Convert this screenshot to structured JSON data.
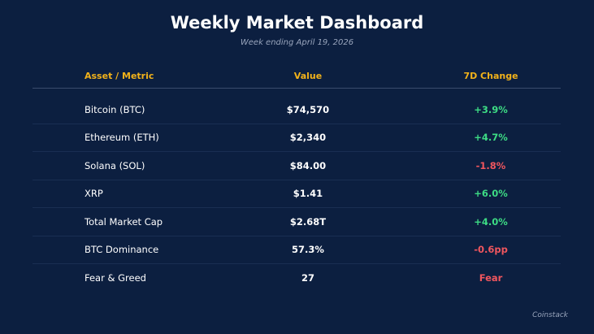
{
  "title": "Weekly Market Dashboard",
  "subtitle": "Week ending April 19, 2026",
  "columns": {
    "metric": "Asset / Metric",
    "value": "Value",
    "change": "7D Change"
  },
  "rows": [
    {
      "metric": "Bitcoin (BTC)",
      "value": "$74,570",
      "change": "+3.9%",
      "trend": "positive"
    },
    {
      "metric": "Ethereum (ETH)",
      "value": "$2,340",
      "change": "+4.7%",
      "trend": "positive"
    },
    {
      "metric": "Solana (SOL)",
      "value": "$84.00",
      "change": "-1.8%",
      "trend": "negative"
    },
    {
      "metric": "XRP",
      "value": "$1.41",
      "change": "+6.0%",
      "trend": "positive"
    },
    {
      "metric": "Total Market Cap",
      "value": "$2.68T",
      "change": "+4.0%",
      "trend": "positive"
    },
    {
      "metric": "BTC Dominance",
      "value": "57.3%",
      "change": "-0.6pp",
      "trend": "negative"
    },
    {
      "metric": "Fear & Greed",
      "value": "27",
      "change": "Fear",
      "trend": "negative"
    }
  ],
  "footer": "Coinstack",
  "colors": {
    "background": "#0c1f40",
    "header_accent": "#f2b21a",
    "positive": "#3ddc84",
    "negative": "#f0565e"
  }
}
